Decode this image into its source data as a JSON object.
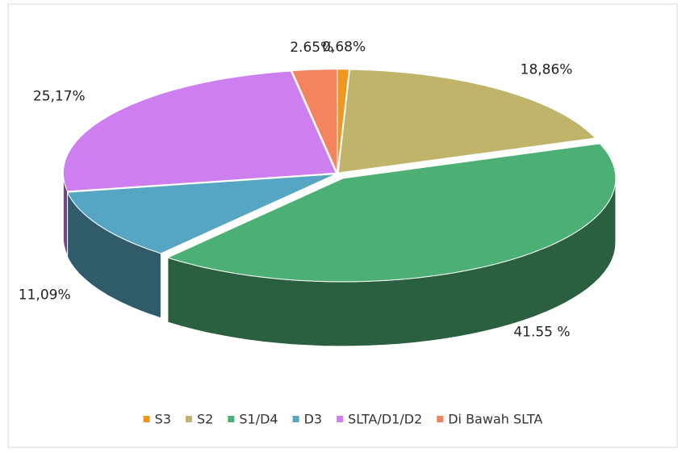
{
  "chart_data": {
    "type": "pie3d",
    "categories": [
      "S3",
      "S2",
      "S1/D4",
      "D3",
      "SLTA/D1/D2",
      "Di Bawah SLTA"
    ],
    "values": [
      0.68,
      18.86,
      41.55,
      11.09,
      25.17,
      2.65
    ],
    "value_labels": [
      "0,68%",
      "18,86%",
      "41.55 %",
      "11,09%",
      "25,17%",
      "2.65%"
    ],
    "colors": [
      "#f0961e",
      "#c0b46a",
      "#4caf73",
      "#56a5c3",
      "#cd7ff0",
      "#f4845f"
    ],
    "legend": "bottom"
  }
}
